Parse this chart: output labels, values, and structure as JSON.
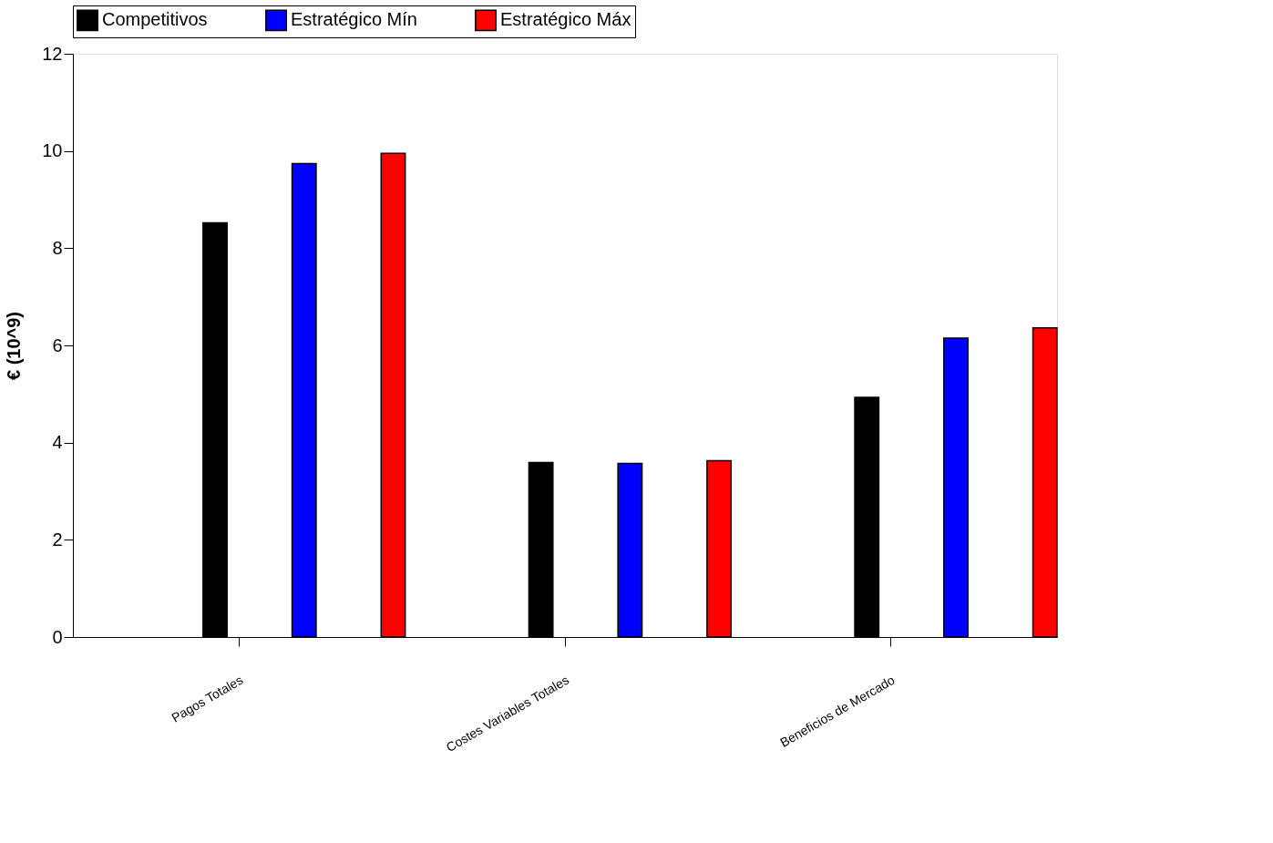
{
  "chart_data": {
    "type": "bar",
    "ylabel": "€ (10^9)",
    "categories": [
      "Pagos Totales",
      "Costes Variables Totales",
      "Beneficios de Mercado"
    ],
    "series": [
      {
        "name": "Competitivos",
        "color": "#000000",
        "values": [
          8.52,
          3.59,
          4.93
        ]
      },
      {
        "name": "Estratégico Mín",
        "color": "#0000ff",
        "values": [
          9.74,
          3.57,
          6.15
        ]
      },
      {
        "name": "Estratégico Máx",
        "color": "#ff0000",
        "values": [
          9.95,
          3.63,
          6.36
        ]
      }
    ],
    "ylim": [
      0,
      12
    ],
    "yticks": [
      0,
      2,
      4,
      6,
      8,
      10,
      12
    ],
    "grid": false,
    "legend": "top"
  }
}
